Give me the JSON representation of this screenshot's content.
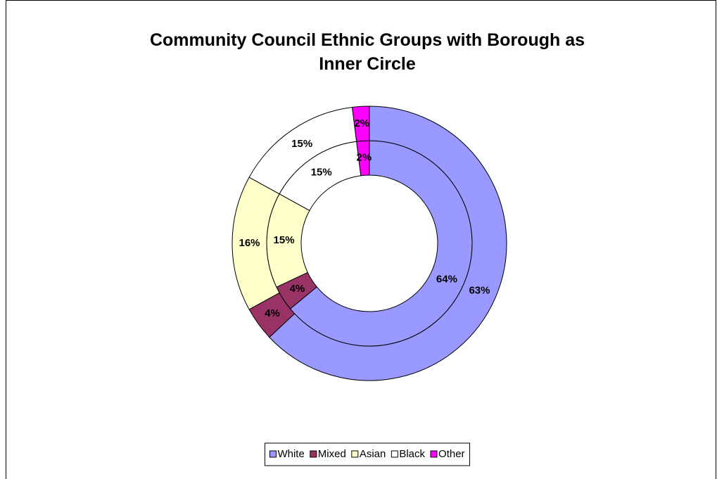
{
  "chart_data": {
    "type": "doughnut",
    "title": "Community Council Ethnic Groups with Borough as Inner Circle",
    "categories": [
      "White",
      "Mixed",
      "Asian",
      "Black",
      "Other"
    ],
    "colors": [
      "#9999ff",
      "#993366",
      "#ffffcc",
      "#ffffff",
      "#ff00ff"
    ],
    "series": [
      {
        "values": [
          64,
          4,
          15,
          15,
          2
        ],
        "value_labels": [
          "64%",
          "4%",
          "15%",
          "15%",
          "2%"
        ]
      },
      {
        "values": [
          63,
          4,
          16,
          15,
          2
        ],
        "value_labels": [
          "63%",
          "4%",
          "16%",
          "15%",
          "2%"
        ]
      }
    ],
    "legend": "bottom"
  }
}
